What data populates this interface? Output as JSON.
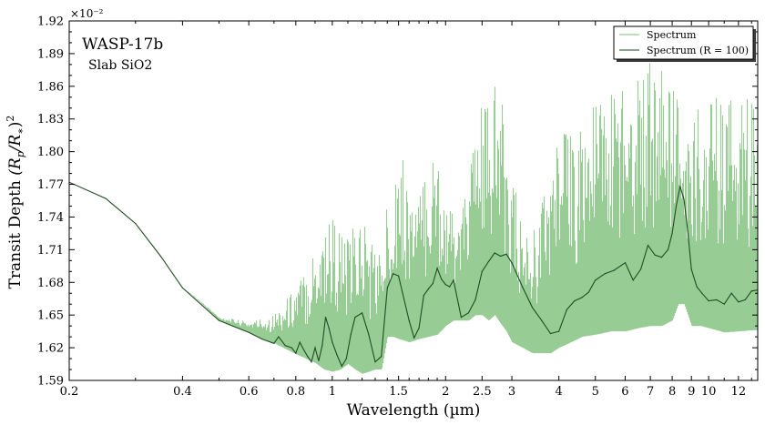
{
  "chart_data": {
    "type": "line",
    "x_scale": "log",
    "xlabel": "Wavelength (µm)",
    "ylabel": "Transit Depth (R_p/R_*)^2",
    "y_multiplier": "×10⁻²",
    "xlim": [
      0.2,
      13.5
    ],
    "ylim": [
      1.59,
      1.92
    ],
    "x_ticks": [
      0.2,
      0.4,
      0.6,
      0.8,
      1,
      1.5,
      2,
      2.5,
      3,
      4,
      5,
      6,
      7,
      8,
      9,
      10,
      12
    ],
    "x_tick_labels": [
      "0.2",
      "0.4",
      "0.6",
      "0.8",
      "1",
      "1.5",
      "2",
      "2.5",
      "3",
      "4",
      "5",
      "6",
      "7",
      "8",
      "9",
      "10",
      "12"
    ],
    "y_ticks": [
      1.59,
      1.62,
      1.65,
      1.68,
      1.71,
      1.74,
      1.77,
      1.8,
      1.83,
      1.86,
      1.89,
      1.92
    ],
    "y_tick_labels": [
      "1.59",
      "1.62",
      "1.65",
      "1.68",
      "1.71",
      "1.74",
      "1.77",
      "1.80",
      "1.83",
      "1.86",
      "1.89",
      "1.92"
    ],
    "annotations": [
      "WASP-17b",
      "Slab SiO2"
    ],
    "legend": {
      "placement": "top-right",
      "entries": [
        "Spectrum",
        "Spectrum (R = 100)"
      ]
    },
    "colors": {
      "spectrum": "#7dbf7a",
      "binned": "#1e4d20"
    },
    "series": [
      {
        "name": "Spectrum",
        "x": [
          0.2,
          0.25,
          0.3,
          0.35,
          0.4,
          0.5,
          0.6,
          0.65,
          0.7,
          0.75,
          0.8,
          0.85,
          0.9,
          0.95,
          1.0,
          1.05,
          1.1,
          1.15,
          1.2,
          1.25,
          1.3,
          1.35,
          1.4,
          1.45,
          1.5,
          1.6,
          1.7,
          1.8,
          1.9,
          2.0,
          2.1,
          2.2,
          2.3,
          2.4,
          2.5,
          2.6,
          2.7,
          2.8,
          2.9,
          3.0,
          3.2,
          3.4,
          3.6,
          3.8,
          4.0,
          4.3,
          4.6,
          5.0,
          5.5,
          6.0,
          6.5,
          7.0,
          7.5,
          8.0,
          8.3,
          8.6,
          9.0,
          9.5,
          10.0,
          10.5,
          11.0,
          12.0,
          13.0
        ],
        "y_min": [
          1.772,
          1.757,
          1.734,
          1.704,
          1.675,
          1.645,
          1.634,
          1.628,
          1.624,
          1.619,
          1.614,
          1.61,
          1.606,
          1.6,
          1.598,
          1.6,
          1.605,
          1.6,
          1.596,
          1.598,
          1.6,
          1.6,
          1.63,
          1.63,
          1.628,
          1.625,
          1.628,
          1.63,
          1.632,
          1.64,
          1.645,
          1.645,
          1.645,
          1.65,
          1.65,
          1.645,
          1.65,
          1.642,
          1.635,
          1.625,
          1.62,
          1.615,
          1.615,
          1.615,
          1.62,
          1.625,
          1.63,
          1.632,
          1.635,
          1.635,
          1.638,
          1.64,
          1.64,
          1.645,
          1.66,
          1.66,
          1.64,
          1.64,
          1.638,
          1.636,
          1.634,
          1.635,
          1.636
        ],
        "y_max": [
          1.772,
          1.757,
          1.734,
          1.704,
          1.675,
          1.648,
          1.644,
          1.648,
          1.652,
          1.664,
          1.68,
          1.695,
          1.72,
          1.745,
          1.75,
          1.73,
          1.72,
          1.738,
          1.75,
          1.73,
          1.72,
          1.71,
          1.76,
          1.79,
          1.81,
          1.77,
          1.76,
          1.8,
          1.81,
          1.76,
          1.74,
          1.74,
          1.79,
          1.82,
          1.85,
          1.84,
          1.86,
          1.85,
          1.82,
          1.78,
          1.73,
          1.73,
          1.76,
          1.8,
          1.82,
          1.82,
          1.83,
          1.85,
          1.86,
          1.88,
          1.88,
          1.89,
          1.88,
          1.86,
          1.86,
          1.82,
          1.82,
          1.85,
          1.86,
          1.85,
          1.84,
          1.86,
          1.85
        ]
      },
      {
        "name": "Spectrum (R = 100)",
        "x": [
          0.2,
          0.25,
          0.3,
          0.35,
          0.4,
          0.5,
          0.6,
          0.65,
          0.7,
          0.72,
          0.75,
          0.78,
          0.8,
          0.82,
          0.84,
          0.86,
          0.88,
          0.9,
          0.92,
          0.94,
          0.96,
          0.98,
          1.0,
          1.03,
          1.06,
          1.09,
          1.12,
          1.15,
          1.2,
          1.25,
          1.3,
          1.35,
          1.4,
          1.45,
          1.5,
          1.55,
          1.6,
          1.65,
          1.7,
          1.75,
          1.8,
          1.85,
          1.9,
          1.95,
          2.0,
          2.05,
          2.1,
          2.2,
          2.3,
          2.4,
          2.5,
          2.6,
          2.7,
          2.8,
          2.9,
          3.0,
          3.2,
          3.4,
          3.6,
          3.8,
          4.0,
          4.2,
          4.4,
          4.6,
          4.8,
          5.0,
          5.3,
          5.6,
          6.0,
          6.3,
          6.6,
          6.9,
          7.2,
          7.5,
          7.8,
          8.0,
          8.2,
          8.4,
          8.6,
          8.8,
          9.0,
          9.3,
          9.6,
          10.0,
          10.5,
          11.0,
          11.5,
          12.0,
          12.5,
          13.0,
          13.5
        ],
        "y": [
          1.772,
          1.757,
          1.734,
          1.704,
          1.675,
          1.645,
          1.634,
          1.628,
          1.624,
          1.63,
          1.622,
          1.62,
          1.615,
          1.625,
          1.618,
          1.612,
          1.607,
          1.62,
          1.608,
          1.622,
          1.648,
          1.638,
          1.625,
          1.613,
          1.603,
          1.61,
          1.632,
          1.648,
          1.652,
          1.632,
          1.607,
          1.612,
          1.675,
          1.688,
          1.686,
          1.665,
          1.645,
          1.629,
          1.638,
          1.668,
          1.674,
          1.679,
          1.693,
          1.683,
          1.678,
          1.676,
          1.682,
          1.648,
          1.652,
          1.664,
          1.69,
          1.699,
          1.707,
          1.704,
          1.706,
          1.698,
          1.676,
          1.657,
          1.645,
          1.633,
          1.635,
          1.655,
          1.663,
          1.666,
          1.671,
          1.682,
          1.688,
          1.691,
          1.698,
          1.682,
          1.692,
          1.714,
          1.705,
          1.703,
          1.71,
          1.725,
          1.75,
          1.768,
          1.756,
          1.727,
          1.692,
          1.676,
          1.67,
          1.663,
          1.664,
          1.66,
          1.67,
          1.662,
          1.664,
          1.672,
          1.673
        ]
      }
    ]
  }
}
